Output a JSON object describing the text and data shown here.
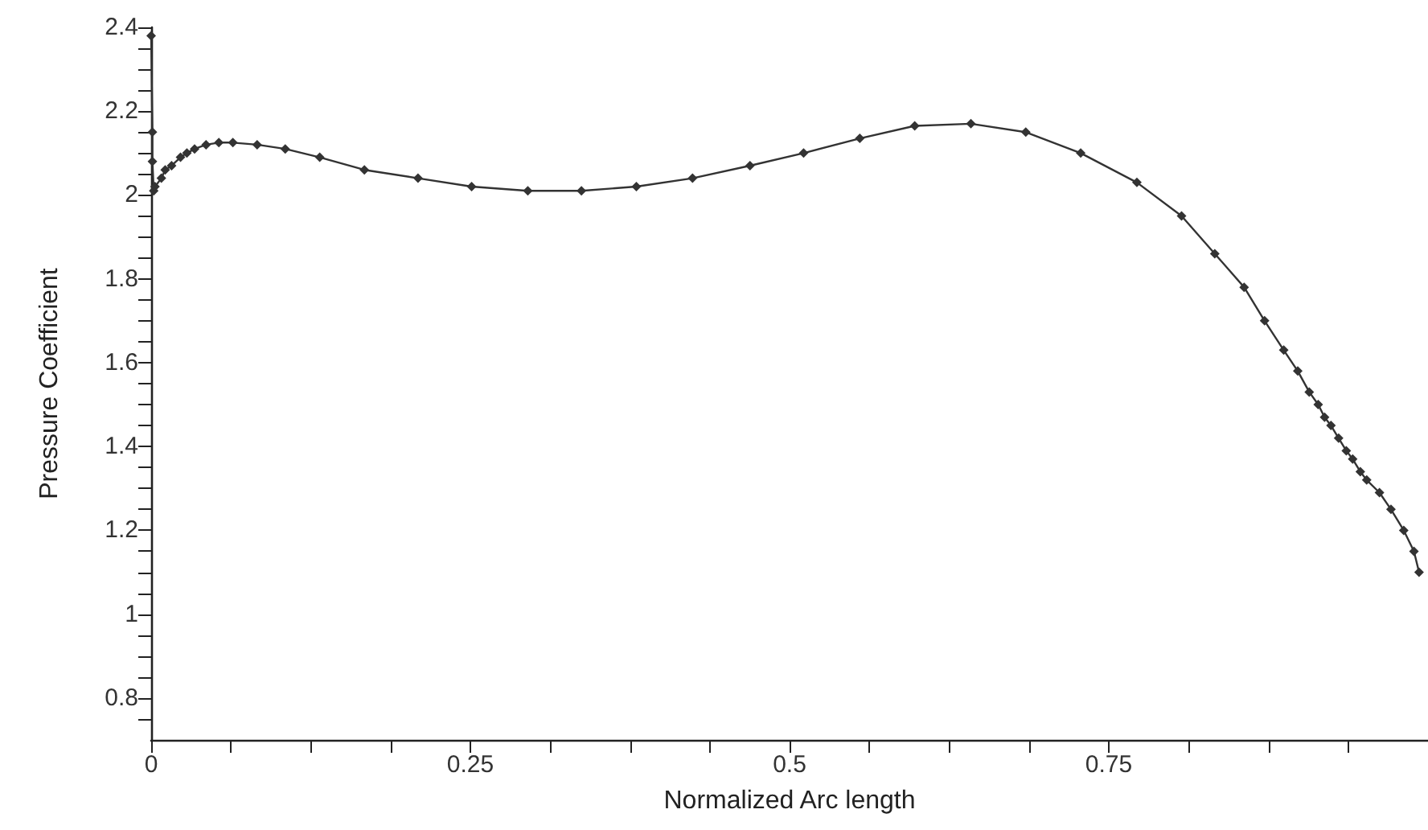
{
  "chart_data": {
    "type": "line",
    "xlabel": "Normalized Arc length",
    "ylabel": "Pressure Coefficient",
    "xlim": [
      0,
      1
    ],
    "ylim": [
      0.7,
      2.4
    ],
    "xticks": [
      0,
      {
        "value": 0.0625,
        "label": null
      },
      {
        "value": 0.125,
        "label": null
      },
      {
        "value": 0.1875,
        "label": null
      },
      0.25,
      {
        "value": 0.3125,
        "label": null
      },
      {
        "value": 0.375,
        "label": null
      },
      {
        "value": 0.4375,
        "label": null
      },
      0.5,
      {
        "value": 0.5625,
        "label": null
      },
      {
        "value": 0.625,
        "label": null
      },
      {
        "value": 0.6875,
        "label": null
      },
      0.75,
      {
        "value": 0.8125,
        "label": null
      },
      {
        "value": 0.875,
        "label": null
      },
      {
        "value": 0.9375,
        "label": null
      }
    ],
    "yticks": [
      {
        "value": 0.75,
        "label": null
      },
      0.8,
      {
        "value": 0.85,
        "label": null
      },
      {
        "value": 0.9,
        "label": null
      },
      {
        "value": 0.95,
        "label": null
      },
      1,
      {
        "value": 1.05,
        "label": null
      },
      {
        "value": 1.1,
        "label": null
      },
      {
        "value": 1.15,
        "label": null
      },
      1.2,
      {
        "value": 1.25,
        "label": null
      },
      {
        "value": 1.3,
        "label": null
      },
      {
        "value": 1.35,
        "label": null
      },
      1.4,
      {
        "value": 1.45,
        "label": null
      },
      {
        "value": 1.5,
        "label": null
      },
      {
        "value": 1.55,
        "label": null
      },
      1.6,
      {
        "value": 1.65,
        "label": null
      },
      {
        "value": 1.7,
        "label": null
      },
      {
        "value": 1.75,
        "label": null
      },
      1.8,
      {
        "value": 1.85,
        "label": null
      },
      {
        "value": 1.9,
        "label": null
      },
      {
        "value": 1.95,
        "label": null
      },
      2,
      {
        "value": 2.05,
        "label": null
      },
      {
        "value": 2.1,
        "label": null
      },
      {
        "value": 2.15,
        "label": null
      },
      2.2,
      {
        "value": 2.25,
        "label": null
      },
      {
        "value": 2.3,
        "label": null
      },
      {
        "value": 2.35,
        "label": null
      },
      2.4
    ],
    "grid": false,
    "marker": "diamond",
    "line_style": "solid",
    "series": [
      {
        "color": "#333333",
        "x": [
          0,
          0.001,
          0.001,
          0.002,
          0.003,
          0.008,
          0.011,
          0.016,
          0.023,
          0.028,
          0.034,
          0.043,
          0.053,
          0.064,
          0.083,
          0.105,
          0.132,
          0.167,
          0.209,
          0.251,
          0.295,
          0.337,
          0.38,
          0.424,
          0.469,
          0.511,
          0.555,
          0.598,
          0.642,
          0.685,
          0.728,
          0.772,
          0.807,
          0.833,
          0.856,
          0.872,
          0.887,
          0.898,
          0.907,
          0.914,
          0.919,
          0.924,
          0.93,
          0.936,
          0.941,
          0.947,
          0.952,
          0.962,
          0.971,
          0.981,
          0.989,
          0.993
        ],
        "values": [
          2.38,
          2.15,
          2.08,
          2.01,
          2.02,
          2.04,
          2.06,
          2.07,
          2.09,
          2.1,
          2.11,
          2.12,
          2.125,
          2.125,
          2.12,
          2.11,
          2.09,
          2.06,
          2.04,
          2.02,
          2.01,
          2.01,
          2.02,
          2.04,
          2.07,
          2.1,
          2.135,
          2.165,
          2.17,
          2.15,
          2.1,
          2.03,
          1.95,
          1.86,
          1.78,
          1.7,
          1.63,
          1.58,
          1.53,
          1.5,
          1.47,
          1.45,
          1.42,
          1.39,
          1.37,
          1.34,
          1.32,
          1.29,
          1.25,
          1.2,
          1.15,
          1.1
        ]
      }
    ]
  }
}
